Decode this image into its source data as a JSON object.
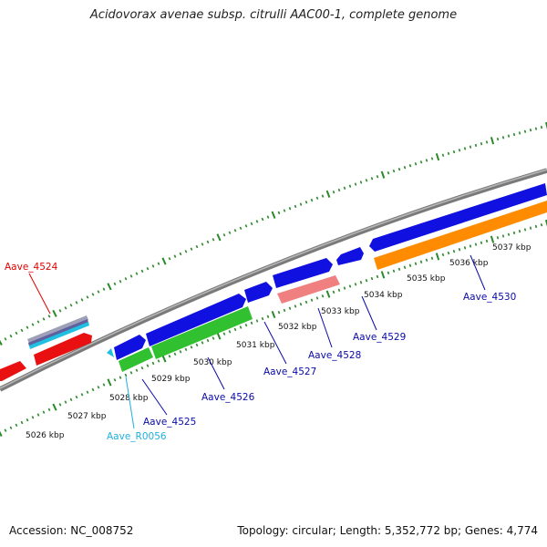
{
  "title": "Acidovorax avenae subsp. citrulli AAC00-1, complete genome",
  "footer": {
    "accession": "Accession: NC_008752",
    "summary": "Topology: circular; Length: 5,352,772 bp; Genes: 4,774"
  },
  "colors": {
    "forward_gene": "#1010e0",
    "reverse_gene_green": "#30c030",
    "rna_cyan": "#20c0e0",
    "reverse_orange": "#ff8c00",
    "pink_gene": "#f08080",
    "red_gene": "#e81010",
    "label_blue": "#0a0aa8",
    "label_red": "#e00000",
    "label_cyan": "#20b0e0",
    "tick_green": "#2a8a2a"
  },
  "scale_labels": [
    "5026 kbp",
    "5027 kbp",
    "5028 kbp",
    "5029 kbp",
    "5030 kbp",
    "5031 kbp",
    "5032 kbp",
    "5033 kbp",
    "5034 kbp",
    "5035 kbp",
    "5036 kbp",
    "5037 kbp"
  ],
  "gene_labels": {
    "aave_4524": "Aave_4524",
    "aave_r0056": "Aave_R0056",
    "aave_4525": "Aave_4525",
    "aave_4526": "Aave_4526",
    "aave_4527": "Aave_4527",
    "aave_4528": "Aave_4528",
    "aave_4529": "Aave_4529",
    "aave_4530": "Aave_4530"
  }
}
